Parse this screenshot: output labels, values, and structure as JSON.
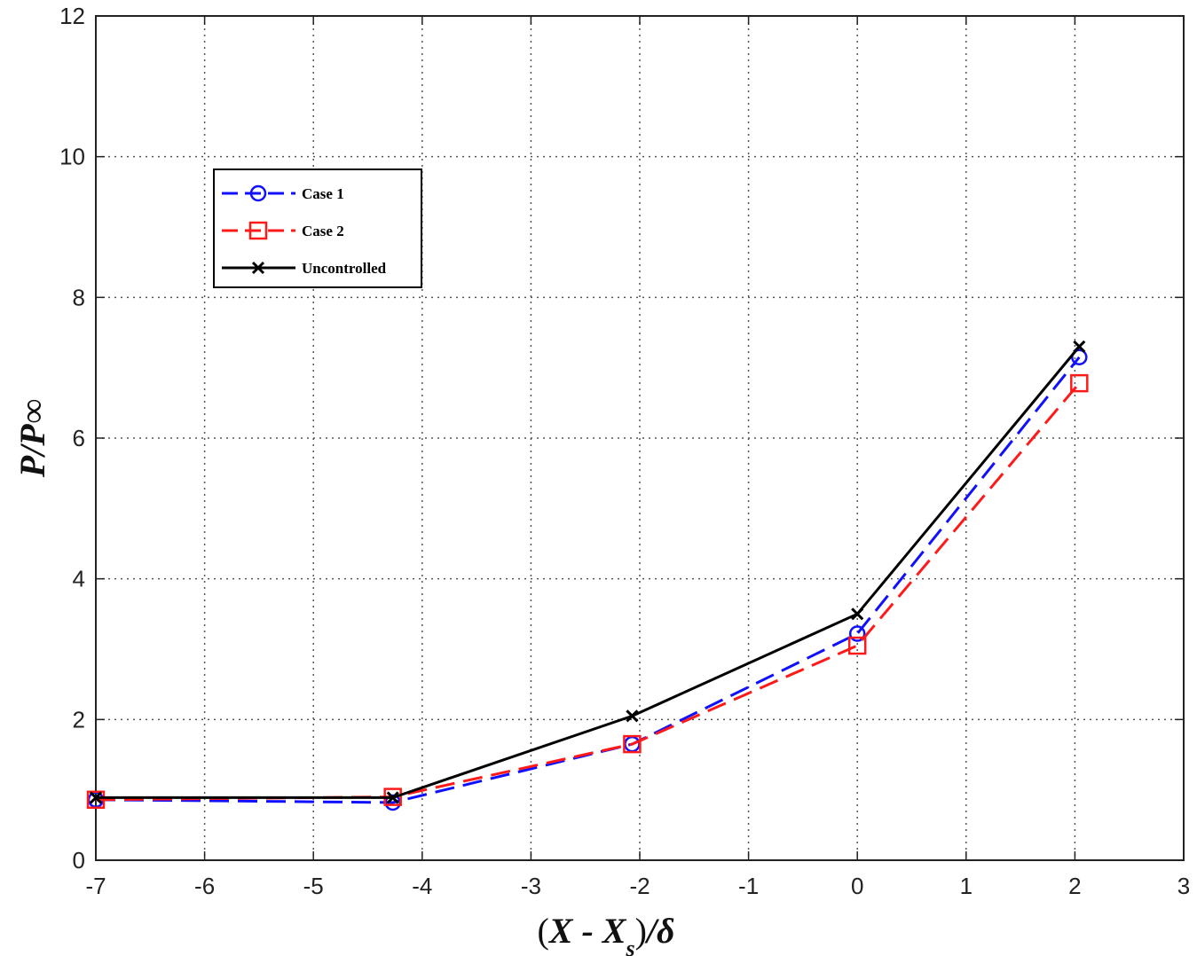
{
  "chart_data": {
    "type": "line",
    "title": "",
    "xlabel": "(X - Xs)/δ",
    "ylabel": "P/P∞",
    "xlim": [
      -7,
      3
    ],
    "ylim": [
      0,
      12
    ],
    "xticks": [
      "-7",
      "-6",
      "-5",
      "-4",
      "-3",
      "-2",
      "-1",
      "0",
      "1",
      "2",
      "3"
    ],
    "yticks": [
      "0",
      "2",
      "4",
      "6",
      "8",
      "10",
      "12"
    ],
    "grid": true,
    "legend_position": "top-left",
    "series": [
      {
        "name": "Case 1",
        "color": "#1010ff",
        "marker": "circle",
        "x": [
          -7.0,
          -4.27,
          -2.07,
          0.0,
          2.04
        ],
        "y": [
          0.86,
          0.82,
          1.65,
          3.22,
          7.15
        ]
      },
      {
        "name": "Case 2",
        "color": "#ff1a1a",
        "marker": "square",
        "x": [
          -7.0,
          -4.27,
          -2.07,
          0.0,
          2.04
        ],
        "y": [
          0.86,
          0.9,
          1.65,
          3.05,
          6.78
        ]
      },
      {
        "name": "Uncontrolled",
        "color": "#000000",
        "marker": "x",
        "x": [
          -7.0,
          -4.27,
          -2.07,
          0.0,
          2.04
        ],
        "y": [
          0.89,
          0.89,
          2.05,
          3.5,
          7.3
        ]
      }
    ]
  }
}
